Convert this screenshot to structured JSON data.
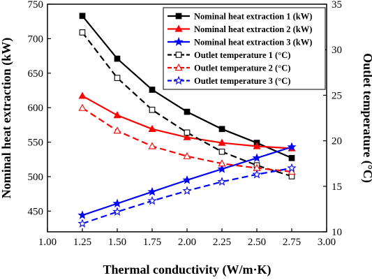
{
  "chart_data": {
    "type": "line",
    "xlabel": "Thermal conductivity (W/m·K)",
    "ylabel_left": "Nominal heat extraction (kW)",
    "ylabel_right": "Outlet temperature (°C)",
    "xlim": [
      1.0,
      3.0
    ],
    "ylim_left": [
      420,
      750
    ],
    "ylim_right": [
      10,
      35
    ],
    "x_ticks": [
      "1.00",
      "1.25",
      "1.50",
      "1.75",
      "2.00",
      "2.25",
      "2.50",
      "2.75",
      "3.00"
    ],
    "y_left_ticks": [
      "450",
      "500",
      "550",
      "600",
      "650",
      "700",
      "750"
    ],
    "y_right_ticks": [
      "10",
      "15",
      "20",
      "25",
      "30",
      "35"
    ],
    "legend_position": "top-right",
    "grid": false,
    "x": [
      1.25,
      1.5,
      1.75,
      2.0,
      2.25,
      2.5,
      2.75
    ],
    "series": [
      {
        "name": "Nominal heat extraction 1 (kW)",
        "axis": "left",
        "color": "#000000",
        "dash": "solid",
        "marker": "filled-square",
        "values": [
          733,
          671,
          626,
          594,
          569,
          549,
          527
        ]
      },
      {
        "name": "Nominal heat extraction 2 (kW)",
        "axis": "left",
        "color": "#ff0000",
        "dash": "solid",
        "marker": "filled-triangle",
        "values": [
          617,
          589,
          569,
          557,
          549,
          544,
          541
        ]
      },
      {
        "name": "Nominal heat extraction 3 (kW)",
        "axis": "left",
        "color": "#0000ff",
        "dash": "solid",
        "marker": "filled-star",
        "values": [
          444,
          461,
          478,
          495,
          511,
          527,
          543
        ]
      },
      {
        "name": "Outlet temperature 1 (°C)",
        "axis": "right",
        "color": "#000000",
        "dash": "dashed",
        "marker": "open-square",
        "values": [
          31.9,
          26.9,
          23.4,
          20.9,
          18.8,
          17.3,
          16.1
        ]
      },
      {
        "name": "Outlet temperature 2 (°C)",
        "axis": "right",
        "color": "#ff0000",
        "dash": "dashed",
        "marker": "open-triangle",
        "values": [
          23.6,
          21.1,
          19.4,
          18.3,
          17.5,
          17.0,
          16.6
        ]
      },
      {
        "name": "Outlet temperature 3 (°C)",
        "axis": "right",
        "color": "#0000ff",
        "dash": "dashed",
        "marker": "open-star",
        "values": [
          10.9,
          12.2,
          13.4,
          14.5,
          15.5,
          16.3,
          17.0
        ]
      }
    ]
  }
}
